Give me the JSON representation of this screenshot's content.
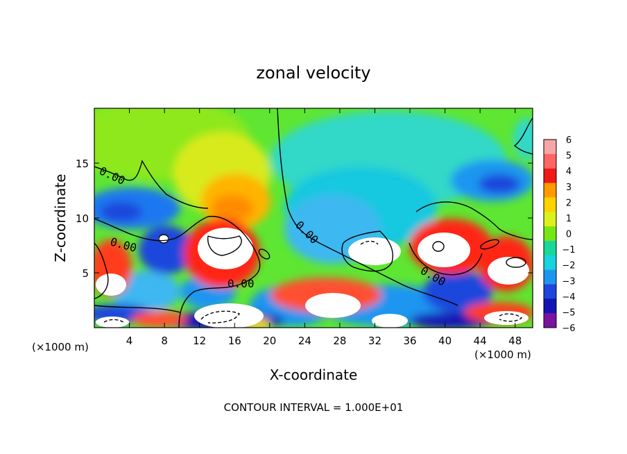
{
  "chart_data": {
    "type": "heatmap",
    "title": "zonal velocity",
    "xlabel": "X-coordinate",
    "ylabel": "Z-coordinate",
    "x_unit_left": "(×1000 m)",
    "x_unit_right": "(×1000 m)",
    "xlim": [
      0,
      50
    ],
    "ylim": [
      0,
      20
    ],
    "x_ticks": [
      4,
      8,
      12,
      16,
      20,
      24,
      28,
      32,
      36,
      40,
      44,
      48
    ],
    "y_ticks": [
      5,
      10,
      15
    ],
    "colorbar": {
      "levels": [
        6,
        5,
        4,
        3,
        2,
        1,
        0,
        -1,
        -2,
        -3,
        -4,
        -5,
        -6
      ],
      "colors": [
        "#f6a6a6",
        "#ff6464",
        "#f01818",
        "#ff9b00",
        "#ffd200",
        "#dcf01e",
        "#78e614",
        "#18d89a",
        "#18d2dc",
        "#1e96f0",
        "#1e46dc",
        "#1414b4",
        "#7814a0"
      ]
    },
    "contour_labels": [
      {
        "text": "0.00",
        "x": 1.5,
        "z": 13.8,
        "angle": 25
      },
      {
        "text": "0.00",
        "x": 2.8,
        "z": 7.6,
        "angle": 15
      },
      {
        "text": "0.00",
        "x": 16.8,
        "z": 3.9,
        "angle": 0
      },
      {
        "text": "0.00",
        "x": 23.8,
        "z": 8.2,
        "angle": 45
      },
      {
        "text": "0.00",
        "x": 38.3,
        "z": 4.5,
        "angle": 30
      }
    ],
    "footer": "CONTOUR INTERVAL = 1.000E+01",
    "grid": false
  }
}
